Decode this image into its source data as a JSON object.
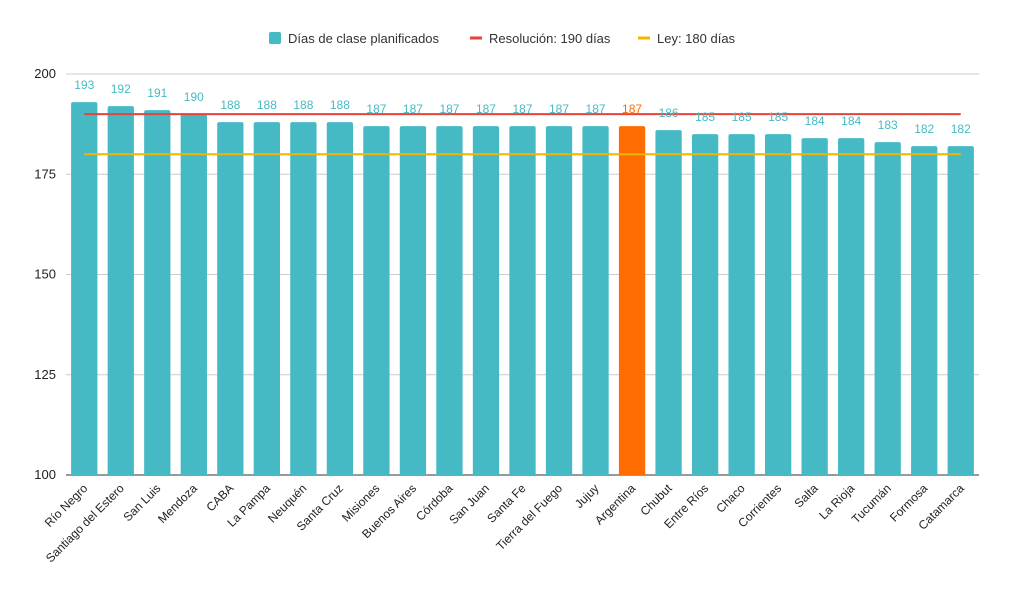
{
  "chart_data": {
    "type": "bar",
    "categories": [
      "Río Negro",
      "Santiago del Estero",
      "San Luis",
      "Mendoza",
      "CABA",
      "La Pampa",
      "Neuquén",
      "Santa Cruz",
      "Misiones",
      "Buenos Aires",
      "Córdoba",
      "San Juan",
      "Santa Fe",
      "Tierra del Fuego",
      "Jujuy",
      "Argentina",
      "Chubut",
      "Entre Ríos",
      "Chaco",
      "Corrientes",
      "Salta",
      "La Rioja",
      "Tucumán",
      "Formosa",
      "Catamarca"
    ],
    "series": [
      {
        "name": "Días de clase planificados",
        "values": [
          193,
          192,
          191,
          190,
          188,
          188,
          188,
          188,
          187,
          187,
          187,
          187,
          187,
          187,
          187,
          187,
          186,
          185,
          185,
          185,
          184,
          184,
          183,
          182,
          182
        ],
        "color": "#45BAC4",
        "highlight": {
          "category": "Argentina",
          "color": "#FF6D01"
        }
      }
    ],
    "reference_lines": [
      {
        "name": "Resolución: 190 días",
        "value": 190,
        "color": "#E8413A"
      },
      {
        "name": "Ley: 180 días",
        "value": 180,
        "color": "#F4B400"
      }
    ],
    "ylim": [
      100,
      200
    ],
    "yticks": [
      100,
      125,
      150,
      175,
      200
    ],
    "grid": true,
    "legend_position": "top",
    "title": "",
    "xlabel": "",
    "ylabel": ""
  }
}
